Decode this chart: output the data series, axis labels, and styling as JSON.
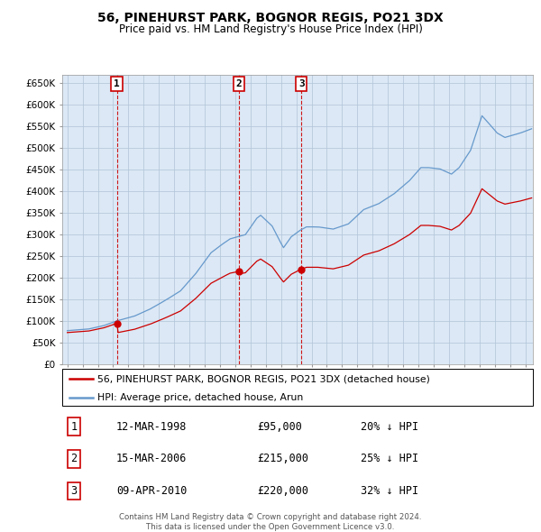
{
  "title": "56, PINEHURST PARK, BOGNOR REGIS, PO21 3DX",
  "subtitle": "Price paid vs. HM Land Registry's House Price Index (HPI)",
  "sale_dates": [
    "1998-03-12",
    "2006-03-15",
    "2010-04-09"
  ],
  "sale_prices": [
    95000,
    215000,
    220000
  ],
  "sale_hpi_pcts": [
    "20% ↓ HPI",
    "25% ↓ HPI",
    "32% ↓ HPI"
  ],
  "table_dates": [
    "12-MAR-1998",
    "15-MAR-2006",
    "09-APR-2010"
  ],
  "table_prices": [
    "£95,000",
    "£215,000",
    "£220,000"
  ],
  "legend_red": "56, PINEHURST PARK, BOGNOR REGIS, PO21 3DX (detached house)",
  "legend_blue": "HPI: Average price, detached house, Arun",
  "footer": "Contains HM Land Registry data © Crown copyright and database right 2024.\nThis data is licensed under the Open Government Licence v3.0.",
  "red_color": "#cc0000",
  "blue_color": "#6699cc",
  "bg_color": "#dce8f5",
  "grid_color": "#b0c4d8",
  "vline_color": "#cc0000",
  "box_color": "#cc0000",
  "ylim": [
    0,
    670000
  ],
  "yticks": [
    0,
    50000,
    100000,
    150000,
    200000,
    250000,
    300000,
    350000,
    400000,
    450000,
    500000,
    550000,
    600000,
    650000
  ],
  "ytick_labels": [
    "£0",
    "£50K",
    "£100K",
    "£150K",
    "£200K",
    "£250K",
    "£300K",
    "£350K",
    "£400K",
    "£450K",
    "£500K",
    "£550K",
    "£600K",
    "£650K"
  ],
  "start_year": 1995,
  "end_year": 2025
}
